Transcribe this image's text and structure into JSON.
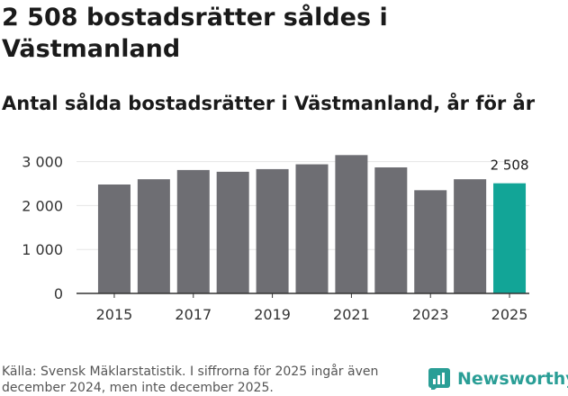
{
  "header": {
    "title": "2 508 bostadsrätter såldes i Västmanland",
    "subtitle": "Antal sålda bostadsrätter i Västmanland, år för år"
  },
  "footer": {
    "source": "Källa: Svensk Mäklarstatistik. I siffrorna för 2025 ingår även december 2024, men inte december 2025.",
    "brand": "Newsworthy"
  },
  "colors": {
    "bar": "#6e6e73",
    "highlight": "#12a597",
    "grid": "#e5e5e5",
    "brand": "#2a9e96"
  },
  "chart_data": {
    "type": "bar",
    "title": "Antal sålda bostadsrätter i Västmanland, år för år",
    "xlabel": "",
    "ylabel": "",
    "categories": [
      "2015",
      "2016",
      "2017",
      "2018",
      "2019",
      "2020",
      "2021",
      "2022",
      "2023",
      "2024",
      "2025"
    ],
    "values": [
      2480,
      2600,
      2810,
      2770,
      2830,
      2940,
      3150,
      2870,
      2350,
      2600,
      2508
    ],
    "ylim": [
      0,
      3300
    ],
    "yticks": [
      0,
      1000,
      2000,
      3000
    ],
    "ytick_labels": [
      "0",
      "1 000",
      "2 000",
      "3 000"
    ],
    "xtick_labels": [
      "2015",
      "2017",
      "2019",
      "2021",
      "2023",
      "2025"
    ],
    "highlight_index": 10,
    "data_label": "2 508",
    "grid": true
  }
}
